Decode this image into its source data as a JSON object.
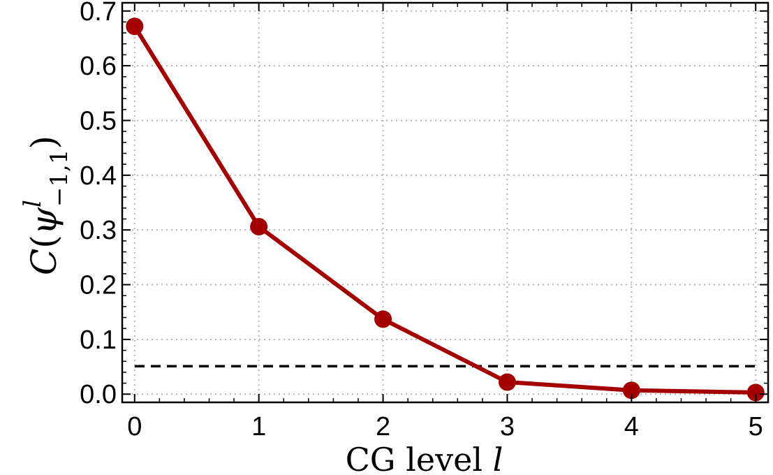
{
  "chart_data": {
    "type": "line",
    "title": "",
    "xlabel": "CG level l",
    "ylabel": "C(ψ^l_{-1,1})",
    "xlim": [
      -0.1,
      5.1
    ],
    "ylim": [
      -0.015,
      0.715
    ],
    "x_ticks": [
      0,
      1,
      2,
      3,
      4,
      5
    ],
    "y_ticks": [
      0.0,
      0.1,
      0.2,
      0.3,
      0.4,
      0.5,
      0.6,
      0.7
    ],
    "x_tick_labels": [
      "0",
      "1",
      "2",
      "3",
      "4",
      "5"
    ],
    "y_tick_labels": [
      "0.0",
      "0.1",
      "0.2",
      "0.3",
      "0.4",
      "0.5",
      "0.6",
      "0.7"
    ],
    "grid": true,
    "series": [
      {
        "x": [
          0,
          1,
          2,
          3,
          4,
          5
        ],
        "values": [
          0.672,
          0.306,
          0.137,
          0.022,
          0.007,
          0.003
        ],
        "color": "#a50000"
      }
    ],
    "reference_line": {
      "y": 0.051,
      "style": "dashed",
      "color": "#000000"
    }
  }
}
